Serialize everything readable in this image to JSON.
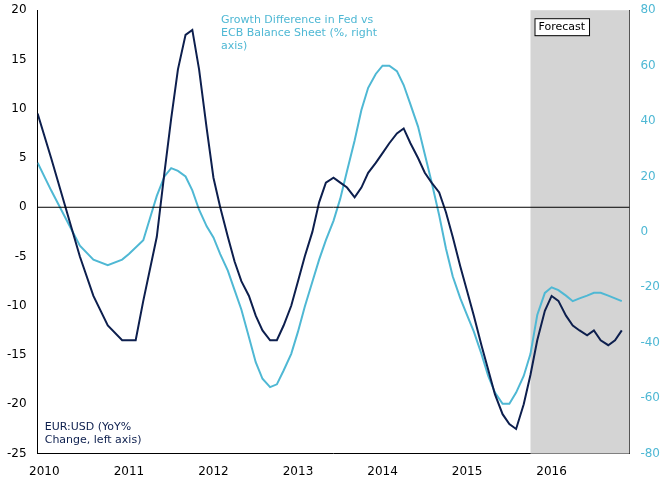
{
  "chart_data": {
    "type": "line",
    "xlim": [
      2009.92,
      2016.92
    ],
    "xticks": [
      2010,
      2011,
      2012,
      2013,
      2014,
      2015,
      2016
    ],
    "ylim": [
      -25,
      20
    ],
    "yticks": [
      -25,
      -20,
      -15,
      -10,
      -5,
      0,
      5,
      10,
      15,
      20
    ],
    "y2lim": [
      -80,
      80
    ],
    "y2ticks": [
      -80,
      -60,
      -40,
      -20,
      0,
      20,
      40,
      60,
      80
    ],
    "grid": false,
    "series": [
      {
        "color": "#0d1f4e",
        "x": [
          2009.92,
          2010.08,
          2010.25,
          2010.42,
          2010.58,
          2010.75,
          2010.92,
          2011.08,
          2011.17,
          2011.33,
          2011.42,
          2011.5,
          2011.58,
          2011.67,
          2011.75,
          2011.83,
          2011.92,
          2012.0,
          2012.08,
          2012.17,
          2012.25,
          2012.33,
          2012.42,
          2012.5,
          2012.58,
          2012.67,
          2012.75,
          2012.83,
          2012.92,
          2013.0,
          2013.08,
          2013.17,
          2013.25,
          2013.33,
          2013.42,
          2013.5,
          2013.58,
          2013.67,
          2013.75,
          2013.83,
          2013.92,
          2014.0,
          2014.08,
          2014.17,
          2014.25,
          2014.33,
          2014.42,
          2014.5,
          2014.58,
          2014.67,
          2014.75,
          2014.83,
          2014.92,
          2015.0,
          2015.08,
          2015.17,
          2015.25,
          2015.33,
          2015.42,
          2015.5,
          2015.58,
          2015.67,
          2015.75,
          2015.83,
          2015.92,
          2016.0,
          2016.08,
          2016.17,
          2016.25,
          2016.33,
          2016.42,
          2016.5,
          2016.58,
          2016.67,
          2016.75,
          2016.83
        ],
        "values": [
          9.5,
          5.0,
          0.0,
          -5.0,
          -9.0,
          -12.0,
          -13.5,
          -13.5,
          -9.5,
          -3.0,
          3.5,
          9.0,
          14.0,
          17.5,
          18.0,
          14.0,
          8.0,
          3.0,
          0.0,
          -3.0,
          -5.5,
          -7.5,
          -9.0,
          -11.0,
          -12.5,
          -13.5,
          -13.5,
          -12.0,
          -10.0,
          -7.5,
          -5.0,
          -2.5,
          0.5,
          2.5,
          3.0,
          2.5,
          2.0,
          1.0,
          2.0,
          3.5,
          4.5,
          5.5,
          6.5,
          7.5,
          8.0,
          6.5,
          5.0,
          3.5,
          2.5,
          1.5,
          -0.5,
          -3.0,
          -6.0,
          -8.5,
          -11.0,
          -14.0,
          -16.5,
          -19.0,
          -21.0,
          -22.0,
          -22.5,
          -20.0,
          -17.0,
          -13.5,
          -10.5,
          -9.0,
          -9.5,
          -11.0,
          -12.0,
          -12.5,
          -13.0,
          -12.5,
          -13.5,
          -14.0,
          -13.5,
          -12.5
        ]
      },
      {
        "color": "#4fb8d4",
        "axis": "y2",
        "x": [
          2009.92,
          2010.08,
          2010.25,
          2010.42,
          2010.58,
          2010.75,
          2010.92,
          2011.0,
          2011.17,
          2011.25,
          2011.33,
          2011.42,
          2011.5,
          2011.58,
          2011.67,
          2011.75,
          2011.83,
          2011.92,
          2012.0,
          2012.08,
          2012.17,
          2012.25,
          2012.33,
          2012.42,
          2012.5,
          2012.58,
          2012.67,
          2012.75,
          2012.83,
          2012.92,
          2013.0,
          2013.08,
          2013.17,
          2013.25,
          2013.33,
          2013.42,
          2013.5,
          2013.58,
          2013.67,
          2013.75,
          2013.83,
          2013.92,
          2014.0,
          2014.08,
          2014.17,
          2014.25,
          2014.33,
          2014.42,
          2014.5,
          2014.58,
          2014.67,
          2014.75,
          2014.83,
          2014.92,
          2015.0,
          2015.08,
          2015.17,
          2015.25,
          2015.33,
          2015.42,
          2015.5,
          2015.58,
          2015.67,
          2015.75,
          2015.83,
          2015.92,
          2016.0,
          2016.08,
          2016.17,
          2016.25,
          2016.33,
          2016.42,
          2016.5,
          2016.58,
          2016.67,
          2016.75,
          2016.83
        ],
        "values": [
          25.0,
          15.0,
          5.0,
          -5.0,
          -10.0,
          -12.0,
          -10.0,
          -8.0,
          -3.0,
          5.0,
          13.0,
          20.0,
          23.0,
          22.0,
          20.0,
          15.0,
          8.0,
          2.0,
          -2.0,
          -8.0,
          -14.0,
          -21.0,
          -28.0,
          -38.0,
          -47.0,
          -53.0,
          -56.0,
          -55.0,
          -50.0,
          -44.0,
          -36.0,
          -27.0,
          -18.0,
          -10.0,
          -3.0,
          4.0,
          12.0,
          22.0,
          33.0,
          44.0,
          52.0,
          57.0,
          60.0,
          60.0,
          58.0,
          53.0,
          46.0,
          38.0,
          28.0,
          18.0,
          6.0,
          -6.0,
          -16.0,
          -24.0,
          -30.0,
          -36.0,
          -44.0,
          -52.0,
          -58.0,
          -62.0,
          -62.0,
          -58.0,
          -52.0,
          -44.0,
          -30.0,
          -22.0,
          -20.0,
          -21.0,
          -23.0,
          -25.0,
          -24.0,
          -23.0,
          -22.0,
          -22.0,
          -23.0,
          -24.0,
          -25.0
        ]
      }
    ],
    "reference_lines": [
      {
        "axis": "y",
        "value": 0
      }
    ],
    "shaded_region": {
      "x_start": 2015.75,
      "label": "Forecast",
      "color": "#d4d4d4"
    },
    "annotations": [
      {
        "text": "EUR:USD (YoY%\nChange, left axis)",
        "color": "#0d1f4e"
      },
      {
        "text": "Growth Difference in Fed vs\nECB Balance Sheet (%, right\naxis)",
        "color": "#4fb8d4"
      }
    ]
  }
}
